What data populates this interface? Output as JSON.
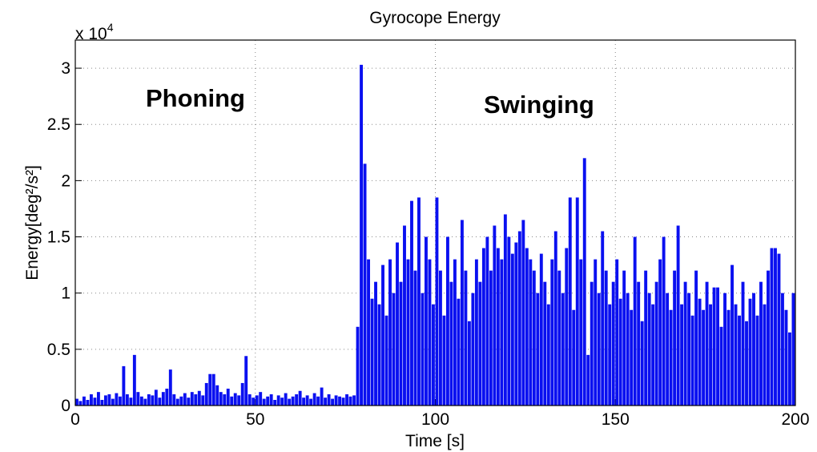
{
  "chart_data": {
    "type": "bar",
    "title": "Gyrocope Energy",
    "xlabel": "Time [s]",
    "ylabel": "Energy[deg²/s²]",
    "y_scale_base": "x 10",
    "y_scale_exponent": "4",
    "annotations": [
      "Phoning",
      "Swinging"
    ],
    "color": "#0a10f0",
    "grid": true,
    "xlim": [
      0,
      200
    ],
    "xticks": [
      0,
      50,
      100,
      150,
      200
    ],
    "ylim": [
      0,
      3.25
    ],
    "yticks": [
      0,
      0.5,
      1,
      1.5,
      2,
      2.5,
      3
    ],
    "x": [
      0,
      1,
      2,
      3,
      4,
      5,
      6,
      7,
      8,
      9,
      10,
      11,
      12,
      13,
      14,
      15,
      16,
      17,
      18,
      19,
      20,
      21,
      22,
      23,
      24,
      25,
      26,
      27,
      28,
      29,
      30,
      31,
      32,
      33,
      34,
      35,
      36,
      37,
      38,
      39,
      40,
      41,
      42,
      43,
      44,
      45,
      46,
      47,
      48,
      49,
      50,
      51,
      52,
      53,
      54,
      55,
      56,
      57,
      58,
      59,
      60,
      61,
      62,
      63,
      64,
      65,
      66,
      67,
      68,
      69,
      70,
      71,
      72,
      73,
      74,
      75,
      76,
      77,
      78,
      79,
      80,
      81,
      82,
      83,
      84,
      85,
      86,
      87,
      88,
      89,
      90,
      91,
      92,
      93,
      94,
      95,
      96,
      97,
      98,
      99,
      100,
      101,
      102,
      103,
      104,
      105,
      106,
      107,
      108,
      109,
      110,
      111,
      112,
      113,
      114,
      115,
      116,
      117,
      118,
      119,
      120,
      121,
      122,
      123,
      124,
      125,
      126,
      127,
      128,
      129,
      130,
      131,
      132,
      133,
      134,
      135,
      136,
      137,
      138,
      139,
      140,
      141,
      142,
      143,
      144,
      145,
      146,
      147,
      148,
      149,
      150,
      151,
      152,
      153,
      154,
      155,
      156,
      157,
      158,
      159,
      160,
      161,
      162,
      163,
      164,
      165,
      166,
      167,
      168,
      169,
      170,
      171,
      172,
      173,
      174,
      175,
      176,
      177,
      178,
      179,
      180,
      181,
      182,
      183,
      184,
      185,
      186,
      187,
      188,
      189,
      190,
      191,
      192,
      193,
      194,
      195,
      196,
      197,
      198,
      199
    ],
    "values": [
      0.06,
      0.04,
      0.08,
      0.05,
      0.1,
      0.07,
      0.12,
      0.05,
      0.09,
      0.1,
      0.06,
      0.11,
      0.08,
      0.35,
      0.1,
      0.07,
      0.45,
      0.12,
      0.08,
      0.06,
      0.1,
      0.09,
      0.14,
      0.07,
      0.12,
      0.15,
      0.32,
      0.1,
      0.06,
      0.08,
      0.11,
      0.07,
      0.12,
      0.1,
      0.13,
      0.09,
      0.2,
      0.28,
      0.28,
      0.18,
      0.12,
      0.1,
      0.15,
      0.08,
      0.11,
      0.09,
      0.2,
      0.44,
      0.1,
      0.07,
      0.09,
      0.12,
      0.06,
      0.08,
      0.1,
      0.05,
      0.09,
      0.07,
      0.11,
      0.06,
      0.08,
      0.1,
      0.13,
      0.07,
      0.09,
      0.06,
      0.11,
      0.08,
      0.16,
      0.07,
      0.1,
      0.06,
      0.09,
      0.08,
      0.07,
      0.1,
      0.08,
      0.09,
      0.7,
      3.03,
      2.15,
      1.3,
      0.95,
      1.1,
      0.9,
      1.25,
      0.8,
      1.3,
      1.0,
      1.45,
      1.1,
      1.6,
      1.3,
      1.82,
      1.2,
      1.85,
      1.0,
      1.5,
      1.3,
      0.9,
      1.85,
      1.2,
      0.8,
      1.5,
      1.1,
      1.3,
      0.95,
      1.65,
      1.2,
      0.75,
      1.0,
      1.3,
      1.1,
      1.4,
      1.5,
      1.2,
      1.6,
      1.4,
      1.3,
      1.7,
      1.5,
      1.35,
      1.45,
      1.55,
      1.65,
      1.4,
      1.3,
      1.2,
      1.0,
      1.35,
      1.1,
      0.9,
      1.3,
      1.55,
      1.2,
      1.0,
      1.4,
      1.85,
      0.85,
      1.85,
      1.3,
      2.2,
      0.45,
      1.1,
      1.3,
      1.0,
      1.55,
      1.2,
      0.9,
      1.1,
      1.3,
      0.95,
      1.2,
      1.0,
      0.85,
      1.5,
      1.1,
      0.75,
      1.2,
      1.0,
      0.9,
      1.1,
      1.3,
      1.5,
      1.0,
      0.85,
      1.2,
      1.6,
      0.9,
      1.1,
      1.0,
      0.8,
      1.2,
      0.95,
      0.85,
      1.1,
      0.9,
      1.05,
      1.05,
      0.7,
      1.0,
      0.85,
      1.25,
      0.9,
      0.8,
      1.1,
      0.75,
      0.95,
      1.0,
      0.8,
      1.1,
      0.9,
      1.2,
      1.4,
      1.4,
      1.35,
      1.0,
      0.85,
      0.65,
      1.0
    ]
  }
}
